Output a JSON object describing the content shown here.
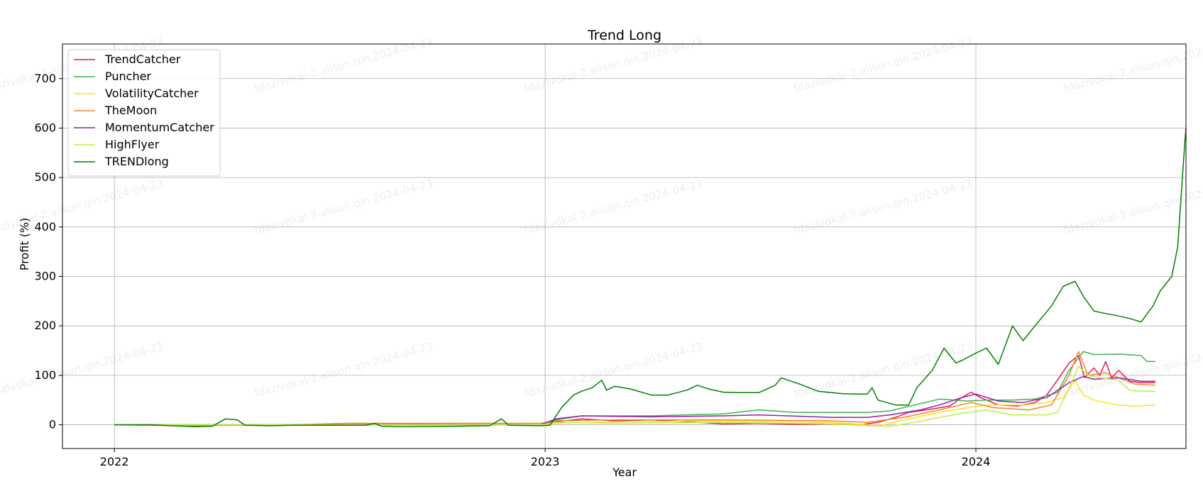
{
  "chart_data": {
    "type": "line",
    "title": "Trend Long",
    "xlabel": "Year",
    "ylabel": "Profit (%)",
    "xlim": [
      "2021-11-18",
      "2024-06-27"
    ],
    "ylim": [
      -48,
      770
    ],
    "x_ticks": [
      "2022-01-01",
      "2023-01-01",
      "2024-01-01"
    ],
    "x_tick_labels": [
      "2022",
      "2023",
      "2024"
    ],
    "y_ticks": [
      0,
      100,
      200,
      300,
      400,
      500,
      600,
      700
    ],
    "y_tick_labels": [
      "0",
      "100",
      "200",
      "300",
      "400",
      "500",
      "600",
      "700"
    ],
    "grid": true,
    "legend_position": "top-left",
    "watermark_text": "fdazlvdkal-2.alison.qin.2024-04-23",
    "series": [
      {
        "name": "TrendCatcher",
        "color": "#e6194b",
        "points": [
          [
            "2022-01-01",
            0
          ],
          [
            "2022-06-01",
            0
          ],
          [
            "2022-09-01",
            1
          ],
          [
            "2022-12-28",
            0
          ],
          [
            "2023-01-10",
            6
          ],
          [
            "2023-02-01",
            12
          ],
          [
            "2023-03-01",
            8
          ],
          [
            "2023-04-01",
            10
          ],
          [
            "2023-06-01",
            2
          ],
          [
            "2023-07-01",
            3
          ],
          [
            "2023-08-01",
            1
          ],
          [
            "2023-09-01",
            2
          ],
          [
            "2023-09-25",
            0
          ],
          [
            "2023-10-10",
            5
          ],
          [
            "2023-10-25",
            15
          ],
          [
            "2023-11-05",
            25
          ],
          [
            "2023-11-20",
            30
          ],
          [
            "2023-12-10",
            38
          ],
          [
            "2023-12-20",
            55
          ],
          [
            "2023-12-28",
            66
          ],
          [
            "2024-01-05",
            55
          ],
          [
            "2024-01-20",
            40
          ],
          [
            "2024-02-05",
            38
          ],
          [
            "2024-02-20",
            45
          ],
          [
            "2024-03-01",
            60
          ],
          [
            "2024-03-10",
            90
          ],
          [
            "2024-03-20",
            125
          ],
          [
            "2024-03-28",
            140
          ],
          [
            "2024-04-02",
            95
          ],
          [
            "2024-04-10",
            115
          ],
          [
            "2024-04-15",
            100
          ],
          [
            "2024-04-20",
            128
          ],
          [
            "2024-04-25",
            95
          ],
          [
            "2024-05-01",
            110
          ],
          [
            "2024-05-10",
            88
          ],
          [
            "2024-05-20",
            85
          ],
          [
            "2024-06-01",
            85
          ]
        ]
      },
      {
        "name": "Puncher",
        "color": "#3cb44b",
        "points": [
          [
            "2022-01-01",
            0
          ],
          [
            "2022-06-01",
            0
          ],
          [
            "2022-12-28",
            0
          ],
          [
            "2023-01-10",
            10
          ],
          [
            "2023-02-01",
            18
          ],
          [
            "2023-04-01",
            18
          ],
          [
            "2023-06-01",
            22
          ],
          [
            "2023-07-01",
            30
          ],
          [
            "2023-08-01",
            25
          ],
          [
            "2023-10-01",
            25
          ],
          [
            "2023-10-20",
            28
          ],
          [
            "2023-11-10",
            40
          ],
          [
            "2023-12-01",
            52
          ],
          [
            "2023-12-25",
            48
          ],
          [
            "2024-01-10",
            50
          ],
          [
            "2024-02-01",
            50
          ],
          [
            "2024-02-20",
            52
          ],
          [
            "2024-03-10",
            65
          ],
          [
            "2024-03-20",
            110
          ],
          [
            "2024-04-01",
            148
          ],
          [
            "2024-04-10",
            142
          ],
          [
            "2024-05-01",
            143
          ],
          [
            "2024-05-20",
            140
          ],
          [
            "2024-05-25",
            128
          ],
          [
            "2024-06-01",
            128
          ]
        ]
      },
      {
        "name": "VolatilityCatcher",
        "color": "#ffe119",
        "points": [
          [
            "2022-01-01",
            0
          ],
          [
            "2022-06-01",
            0
          ],
          [
            "2022-12-28",
            0
          ],
          [
            "2023-01-10",
            3
          ],
          [
            "2023-03-01",
            6
          ],
          [
            "2023-06-01",
            8
          ],
          [
            "2023-09-01",
            5
          ],
          [
            "2023-10-01",
            0
          ],
          [
            "2023-10-10",
            -3
          ],
          [
            "2023-11-01",
            10
          ],
          [
            "2023-12-01",
            25
          ],
          [
            "2023-12-25",
            35
          ],
          [
            "2024-01-10",
            40
          ],
          [
            "2024-02-10",
            40
          ],
          [
            "2024-03-01",
            45
          ],
          [
            "2024-03-15",
            55
          ],
          [
            "2024-03-25",
            90
          ],
          [
            "2024-04-01",
            60
          ],
          [
            "2024-04-10",
            50
          ],
          [
            "2024-04-20",
            45
          ],
          [
            "2024-05-01",
            40
          ],
          [
            "2024-05-15",
            38
          ],
          [
            "2024-06-01",
            40
          ]
        ]
      },
      {
        "name": "TheMoon",
        "color": "#f58231",
        "points": [
          [
            "2022-01-01",
            0
          ],
          [
            "2022-03-01",
            -2
          ],
          [
            "2022-06-01",
            0
          ],
          [
            "2022-07-15",
            3
          ],
          [
            "2022-12-28",
            3
          ],
          [
            "2023-01-10",
            8
          ],
          [
            "2023-03-01",
            10
          ],
          [
            "2023-06-01",
            10
          ],
          [
            "2023-09-01",
            8
          ],
          [
            "2023-10-01",
            5
          ],
          [
            "2023-11-01",
            15
          ],
          [
            "2023-12-01",
            30
          ],
          [
            "2023-12-28",
            45
          ],
          [
            "2024-01-15",
            35
          ],
          [
            "2024-02-15",
            30
          ],
          [
            "2024-03-05",
            40
          ],
          [
            "2024-03-20",
            100
          ],
          [
            "2024-03-28",
            148
          ],
          [
            "2024-04-05",
            100
          ],
          [
            "2024-04-20",
            105
          ],
          [
            "2024-05-01",
            95
          ],
          [
            "2024-05-15",
            82
          ],
          [
            "2024-06-01",
            80
          ]
        ]
      },
      {
        "name": "MomentumCatcher",
        "color": "#911eb4",
        "points": [
          [
            "2022-01-01",
            0
          ],
          [
            "2022-06-01",
            0
          ],
          [
            "2022-12-28",
            0
          ],
          [
            "2023-01-10",
            12
          ],
          [
            "2023-02-01",
            18
          ],
          [
            "2023-04-01",
            16
          ],
          [
            "2023-06-01",
            18
          ],
          [
            "2023-07-01",
            20
          ],
          [
            "2023-09-01",
            15
          ],
          [
            "2023-10-01",
            15
          ],
          [
            "2023-10-20",
            20
          ],
          [
            "2023-11-15",
            30
          ],
          [
            "2023-12-01",
            40
          ],
          [
            "2023-12-20",
            55
          ],
          [
            "2024-01-01",
            62
          ],
          [
            "2024-01-20",
            48
          ],
          [
            "2024-02-10",
            45
          ],
          [
            "2024-03-01",
            55
          ],
          [
            "2024-03-20",
            85
          ],
          [
            "2024-04-01",
            98
          ],
          [
            "2024-04-10",
            92
          ],
          [
            "2024-05-01",
            95
          ],
          [
            "2024-05-20",
            88
          ],
          [
            "2024-06-01",
            88
          ]
        ]
      },
      {
        "name": "HighFlyer",
        "color": "#bfef45",
        "points": [
          [
            "2022-01-01",
            0
          ],
          [
            "2022-06-01",
            0
          ],
          [
            "2022-12-28",
            0
          ],
          [
            "2023-01-10",
            5
          ],
          [
            "2023-03-01",
            3
          ],
          [
            "2023-06-01",
            5
          ],
          [
            "2023-09-01",
            2
          ],
          [
            "2023-10-01",
            -2
          ],
          [
            "2023-10-20",
            -3
          ],
          [
            "2023-11-10",
            5
          ],
          [
            "2023-12-01",
            15
          ],
          [
            "2023-12-25",
            25
          ],
          [
            "2024-01-10",
            30
          ],
          [
            "2024-02-01",
            20
          ],
          [
            "2024-03-01",
            20
          ],
          [
            "2024-03-10",
            25
          ],
          [
            "2024-03-20",
            75
          ],
          [
            "2024-03-28",
            118
          ],
          [
            "2024-04-05",
            100
          ],
          [
            "2024-04-15",
            95
          ],
          [
            "2024-05-01",
            90
          ],
          [
            "2024-05-10",
            70
          ],
          [
            "2024-05-20",
            68
          ],
          [
            "2024-06-01",
            68
          ]
        ]
      },
      {
        "name": "TRENDlong",
        "color": "#008000",
        "points": [
          [
            "2022-01-01",
            0
          ],
          [
            "2022-02-01",
            0
          ],
          [
            "2022-03-10",
            -4
          ],
          [
            "2022-03-25",
            -3
          ],
          [
            "2022-04-05",
            12
          ],
          [
            "2022-04-15",
            10
          ],
          [
            "2022-04-22",
            -1
          ],
          [
            "2022-05-15",
            -2
          ],
          [
            "2022-06-01",
            -1
          ],
          [
            "2022-08-01",
            -1
          ],
          [
            "2022-08-10",
            3
          ],
          [
            "2022-08-15",
            -3
          ],
          [
            "2022-09-01",
            -4
          ],
          [
            "2022-10-15",
            -3
          ],
          [
            "2022-11-15",
            -2
          ],
          [
            "2022-11-25",
            12
          ],
          [
            "2022-12-01",
            -1
          ],
          [
            "2022-12-28",
            -2
          ],
          [
            "2023-01-05",
            -1
          ],
          [
            "2023-01-15",
            35
          ],
          [
            "2023-01-25",
            60
          ],
          [
            "2023-02-01",
            68
          ],
          [
            "2023-02-10",
            75
          ],
          [
            "2023-02-18",
            90
          ],
          [
            "2023-02-22",
            70
          ],
          [
            "2023-03-01",
            78
          ],
          [
            "2023-03-15",
            72
          ],
          [
            "2023-04-01",
            60
          ],
          [
            "2023-04-15",
            60
          ],
          [
            "2023-05-01",
            70
          ],
          [
            "2023-05-10",
            80
          ],
          [
            "2023-05-20",
            72
          ],
          [
            "2023-06-01",
            66
          ],
          [
            "2023-06-15",
            65
          ],
          [
            "2023-07-01",
            65
          ],
          [
            "2023-07-15",
            80
          ],
          [
            "2023-07-20",
            95
          ],
          [
            "2023-08-05",
            82
          ],
          [
            "2023-08-20",
            68
          ],
          [
            "2023-09-10",
            63
          ],
          [
            "2023-09-20",
            62
          ],
          [
            "2023-10-01",
            62
          ],
          [
            "2023-10-05",
            75
          ],
          [
            "2023-10-10",
            50
          ],
          [
            "2023-10-25",
            40
          ],
          [
            "2023-11-05",
            40
          ],
          [
            "2023-11-12",
            75
          ],
          [
            "2023-11-25",
            110
          ],
          [
            "2023-12-05",
            155
          ],
          [
            "2023-12-15",
            125
          ],
          [
            "2023-12-20",
            130
          ],
          [
            "2024-01-01",
            145
          ],
          [
            "2024-01-10",
            155
          ],
          [
            "2024-01-20",
            122
          ],
          [
            "2024-02-01",
            200
          ],
          [
            "2024-02-10",
            170
          ],
          [
            "2024-02-20",
            200
          ],
          [
            "2024-03-05",
            240
          ],
          [
            "2024-03-15",
            280
          ],
          [
            "2024-03-25",
            290
          ],
          [
            "2024-04-01",
            260
          ],
          [
            "2024-04-10",
            230
          ],
          [
            "2024-04-20",
            225
          ],
          [
            "2024-05-01",
            220
          ],
          [
            "2024-05-10",
            215
          ],
          [
            "2024-05-20",
            208
          ],
          [
            "2024-05-30",
            240
          ],
          [
            "2024-06-05",
            270
          ],
          [
            "2024-06-15",
            300
          ],
          [
            "2024-06-20",
            360
          ],
          [
            "2024-06-24",
            500
          ],
          [
            "2024-06-26",
            570
          ],
          [
            "2024-06-27",
            600
          ]
        ]
      }
    ]
  }
}
